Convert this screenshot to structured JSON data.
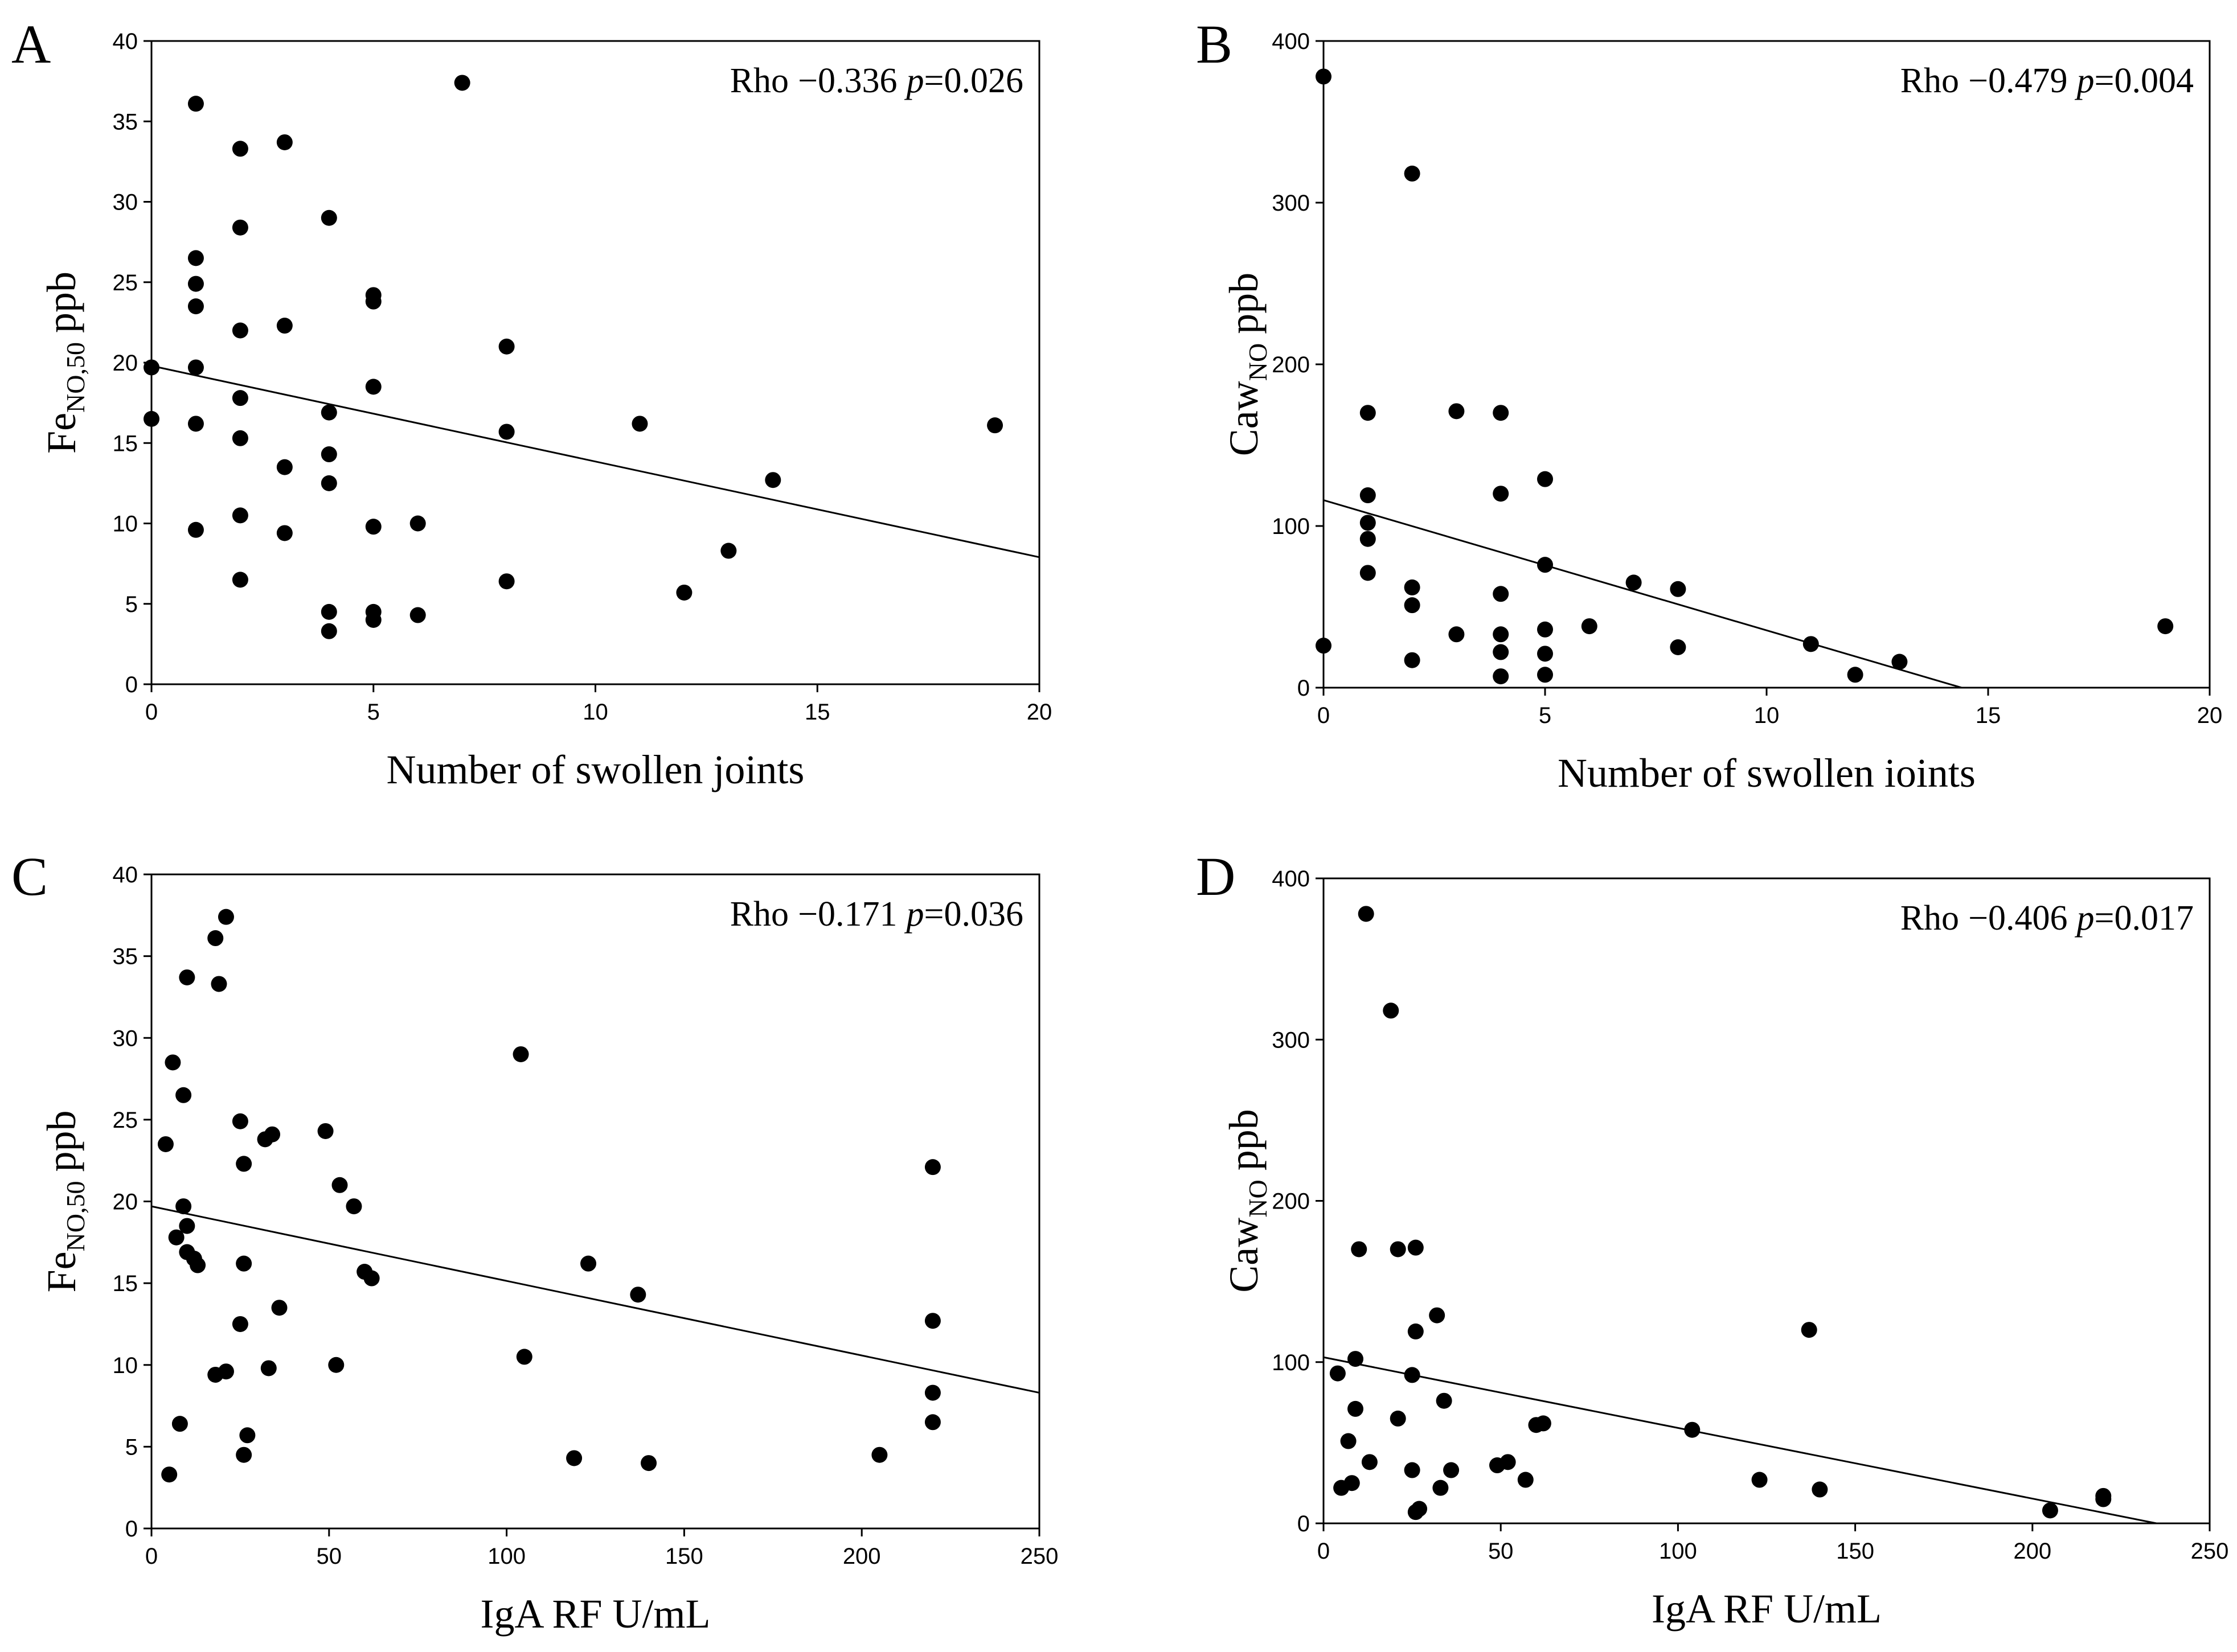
{
  "chart_data": [
    {
      "panel": "A",
      "type": "scatter",
      "xlabel": "Number of swollen joints",
      "ylabel_main": "Fe",
      "ylabel_sub": "NO,50",
      "ylabel_unit": "ppb",
      "xlim": [
        0,
        20
      ],
      "ylim": [
        0,
        40
      ],
      "xticks": [
        0,
        5,
        10,
        15,
        20
      ],
      "yticks": [
        0,
        5,
        10,
        15,
        20,
        25,
        30,
        35,
        40
      ],
      "stat_rho_label": "Rho",
      "stat_rho_value": "−0.336",
      "stat_p_label": "p",
      "stat_p_value": "=0.026",
      "regression": {
        "x": [
          0,
          20
        ],
        "y": [
          19.8,
          7.9
        ]
      },
      "points": [
        [
          0,
          19.7
        ],
        [
          0,
          16.5
        ],
        [
          1,
          36.1
        ],
        [
          1,
          26.5
        ],
        [
          1,
          24.9
        ],
        [
          1,
          23.5
        ],
        [
          1,
          19.7
        ],
        [
          1,
          16.2
        ],
        [
          1,
          9.6
        ],
        [
          2,
          33.3
        ],
        [
          2,
          28.4
        ],
        [
          2,
          22
        ],
        [
          2,
          17.8
        ],
        [
          2,
          15.3
        ],
        [
          2,
          10.5
        ],
        [
          2,
          6.5
        ],
        [
          3,
          33.7
        ],
        [
          3,
          22.3
        ],
        [
          3,
          13.5
        ],
        [
          3,
          9.4
        ],
        [
          4,
          29
        ],
        [
          4,
          16.9
        ],
        [
          4,
          14.3
        ],
        [
          4,
          12.5
        ],
        [
          4,
          4.5
        ],
        [
          4,
          3.3
        ],
        [
          5,
          24.2
        ],
        [
          5,
          23.8
        ],
        [
          5,
          18.5
        ],
        [
          5,
          9.8
        ],
        [
          5,
          4.5
        ],
        [
          5,
          4
        ],
        [
          6,
          10
        ],
        [
          6,
          4.3
        ],
        [
          7,
          37.4
        ],
        [
          8,
          21
        ],
        [
          8,
          15.7
        ],
        [
          8,
          6.4
        ],
        [
          11,
          16.2
        ],
        [
          12,
          5.7
        ],
        [
          13,
          8.3
        ],
        [
          14,
          12.7
        ],
        [
          19,
          16.1
        ]
      ]
    },
    {
      "panel": "B",
      "type": "scatter",
      "xlabel": "Number of swollen ioints",
      "ylabel_main": "Caw",
      "ylabel_sub": "NO",
      "ylabel_unit": "ppb",
      "xlim": [
        0,
        20
      ],
      "ylim": [
        0,
        400
      ],
      "xticks": [
        0,
        5,
        10,
        15,
        20
      ],
      "yticks": [
        0,
        100,
        200,
        300,
        400
      ],
      "stat_rho_label": "Rho",
      "stat_rho_value": "−0.479",
      "stat_p_label": "p",
      "stat_p_value": "=0.004",
      "regression": {
        "x": [
          0,
          14.4
        ],
        "y": [
          116,
          0
        ]
      },
      "points": [
        [
          0,
          378
        ],
        [
          0,
          26
        ],
        [
          1,
          170
        ],
        [
          1,
          119
        ],
        [
          1,
          102
        ],
        [
          1,
          92
        ],
        [
          1,
          71
        ],
        [
          2,
          318
        ],
        [
          2,
          62
        ],
        [
          2,
          51
        ],
        [
          2,
          17
        ],
        [
          3,
          171
        ],
        [
          3,
          33
        ],
        [
          4,
          170
        ],
        [
          4,
          120
        ],
        [
          4,
          58
        ],
        [
          4,
          33
        ],
        [
          4,
          22
        ],
        [
          4,
          7
        ],
        [
          5,
          129
        ],
        [
          5,
          76
        ],
        [
          5,
          36
        ],
        [
          5,
          21
        ],
        [
          5,
          8
        ],
        [
          6,
          38
        ],
        [
          7,
          65
        ],
        [
          8,
          61
        ],
        [
          8,
          25
        ],
        [
          11,
          27
        ],
        [
          12,
          8
        ],
        [
          13,
          16
        ],
        [
          19,
          38
        ]
      ]
    },
    {
      "panel": "C",
      "type": "scatter",
      "xlabel": "IgA RF U/mL",
      "ylabel_main": "Fe",
      "ylabel_sub": "NO,50",
      "ylabel_unit": "ppb",
      "xlim": [
        0,
        250
      ],
      "ylim": [
        0,
        40
      ],
      "xticks": [
        0,
        50,
        100,
        150,
        200,
        250
      ],
      "yticks": [
        0,
        5,
        10,
        15,
        20,
        25,
        30,
        35,
        40
      ],
      "stat_rho_label": "Rho",
      "stat_rho_value": "−0.171",
      "stat_p_label": "p",
      "stat_p_value": "=0.036",
      "regression": {
        "x": [
          0,
          250
        ],
        "y": [
          19.7,
          8.3
        ]
      },
      "points": [
        [
          4,
          23.5
        ],
        [
          5,
          3.3
        ],
        [
          6,
          28.5
        ],
        [
          7,
          17.8
        ],
        [
          8,
          6.4
        ],
        [
          9,
          26.5
        ],
        [
          9,
          19.7
        ],
        [
          10,
          33.7
        ],
        [
          10,
          18.5
        ],
        [
          10,
          16.9
        ],
        [
          12,
          16.5
        ],
        [
          13,
          16.1
        ],
        [
          18,
          9.4
        ],
        [
          18,
          36.1
        ],
        [
          19,
          33.3
        ],
        [
          21,
          37.4
        ],
        [
          21,
          9.6
        ],
        [
          25,
          24.9
        ],
        [
          25,
          12.5
        ],
        [
          26,
          22.3
        ],
        [
          26,
          16.2
        ],
        [
          26,
          4.5
        ],
        [
          27,
          5.7
        ],
        [
          32,
          23.8
        ],
        [
          33,
          9.8
        ],
        [
          34,
          24.1
        ],
        [
          36,
          13.5
        ],
        [
          49,
          24.3
        ],
        [
          52,
          10
        ],
        [
          53,
          21
        ],
        [
          57,
          19.7
        ],
        [
          60,
          15.7
        ],
        [
          62,
          15.3
        ],
        [
          104,
          29
        ],
        [
          105,
          10.5
        ],
        [
          119,
          4.3
        ],
        [
          123,
          16.2
        ],
        [
          137,
          14.3
        ],
        [
          140,
          4
        ],
        [
          205,
          4.5
        ],
        [
          220,
          22.1
        ],
        [
          220,
          12.7
        ],
        [
          220,
          8.3
        ],
        [
          220,
          6.5
        ]
      ]
    },
    {
      "panel": "D",
      "type": "scatter",
      "xlabel": "IgA RF U/mL",
      "ylabel_main": "Caw",
      "ylabel_sub": "NO",
      "ylabel_unit": "ppb",
      "xlim": [
        0,
        250
      ],
      "ylim": [
        0,
        400
      ],
      "xticks": [
        0,
        50,
        100,
        150,
        200,
        250
      ],
      "yticks": [
        0,
        100,
        200,
        300,
        400
      ],
      "stat_rho_label": "Rho",
      "stat_rho_value": "−0.406",
      "stat_p_label": "p",
      "stat_p_value": "=0.017",
      "regression": {
        "x": [
          0,
          235
        ],
        "y": [
          103,
          0
        ]
      },
      "points": [
        [
          4,
          93
        ],
        [
          5,
          22
        ],
        [
          7,
          51
        ],
        [
          8,
          25
        ],
        [
          9,
          102
        ],
        [
          9,
          71
        ],
        [
          10,
          170
        ],
        [
          12,
          378
        ],
        [
          13,
          38
        ],
        [
          19,
          318
        ],
        [
          21,
          170
        ],
        [
          21,
          65
        ],
        [
          25,
          92
        ],
        [
          25,
          33
        ],
        [
          26,
          171
        ],
        [
          26,
          119
        ],
        [
          26,
          7
        ],
        [
          27,
          9
        ],
        [
          32,
          129
        ],
        [
          33,
          22
        ],
        [
          34,
          76
        ],
        [
          36,
          33
        ],
        [
          49,
          36
        ],
        [
          52,
          38
        ],
        [
          57,
          27
        ],
        [
          60,
          61
        ],
        [
          62,
          62
        ],
        [
          104,
          58
        ],
        [
          123,
          27
        ],
        [
          137,
          120
        ],
        [
          140,
          21
        ],
        [
          205,
          8
        ],
        [
          220,
          17
        ],
        [
          220,
          15
        ]
      ]
    }
  ]
}
